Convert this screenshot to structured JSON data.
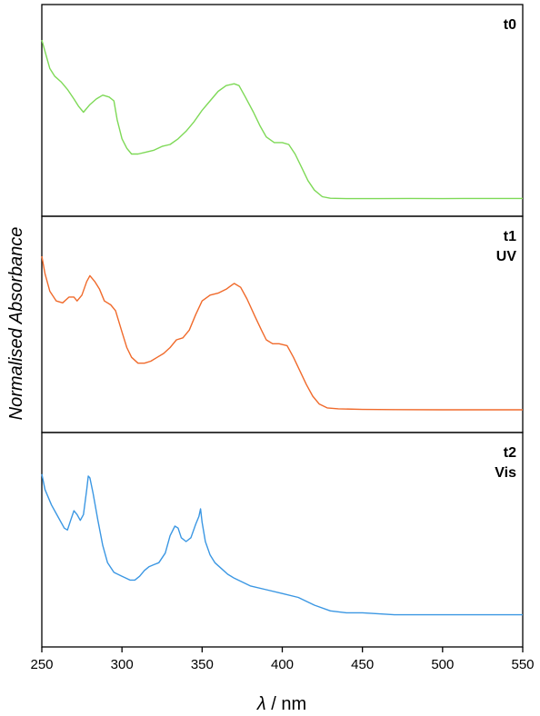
{
  "chart_data": {
    "type": "line",
    "xlabel": "λ / nm",
    "xlabel_var": "λ",
    "xlabel_unit": " / nm",
    "ylabel": "Normalised Absorbance",
    "xlim": [
      250,
      550
    ],
    "x_ticks": [
      250,
      300,
      350,
      400,
      450,
      500,
      550
    ],
    "y_ticks_shown": false,
    "grid": false,
    "panels": [
      {
        "labels": [
          "t0"
        ],
        "color": "#7ed957",
        "ylim": [
          0,
          1
        ],
        "points": [
          [
            250,
            0.88
          ],
          [
            252,
            0.82
          ],
          [
            255,
            0.73
          ],
          [
            258,
            0.69
          ],
          [
            262,
            0.66
          ],
          [
            266,
            0.62
          ],
          [
            270,
            0.57
          ],
          [
            273,
            0.53
          ],
          [
            276,
            0.5
          ],
          [
            280,
            0.54
          ],
          [
            284,
            0.57
          ],
          [
            288,
            0.59
          ],
          [
            292,
            0.58
          ],
          [
            295,
            0.56
          ],
          [
            297,
            0.46
          ],
          [
            300,
            0.36
          ],
          [
            303,
            0.31
          ],
          [
            306,
            0.28
          ],
          [
            310,
            0.28
          ],
          [
            315,
            0.29
          ],
          [
            320,
            0.3
          ],
          [
            325,
            0.32
          ],
          [
            330,
            0.33
          ],
          [
            335,
            0.36
          ],
          [
            340,
            0.4
          ],
          [
            345,
            0.45
          ],
          [
            350,
            0.51
          ],
          [
            355,
            0.56
          ],
          [
            360,
            0.61
          ],
          [
            365,
            0.64
          ],
          [
            370,
            0.65
          ],
          [
            373,
            0.64
          ],
          [
            377,
            0.58
          ],
          [
            382,
            0.5
          ],
          [
            386,
            0.43
          ],
          [
            390,
            0.37
          ],
          [
            395,
            0.34
          ],
          [
            400,
            0.34
          ],
          [
            404,
            0.33
          ],
          [
            408,
            0.28
          ],
          [
            412,
            0.21
          ],
          [
            416,
            0.14
          ],
          [
            420,
            0.09
          ],
          [
            425,
            0.055
          ],
          [
            430,
            0.047
          ],
          [
            440,
            0.045
          ],
          [
            460,
            0.045
          ],
          [
            480,
            0.046
          ],
          [
            500,
            0.045
          ],
          [
            520,
            0.046
          ],
          [
            550,
            0.046
          ]
        ]
      },
      {
        "labels": [
          "t1",
          "UV"
        ],
        "color": "#f06a2b",
        "ylim": [
          0,
          1
        ],
        "points": [
          [
            250,
            0.86
          ],
          [
            252,
            0.77
          ],
          [
            255,
            0.68
          ],
          [
            259,
            0.63
          ],
          [
            263,
            0.62
          ],
          [
            267,
            0.65
          ],
          [
            270,
            0.65
          ],
          [
            272,
            0.63
          ],
          [
            275,
            0.66
          ],
          [
            278,
            0.73
          ],
          [
            280,
            0.76
          ],
          [
            283,
            0.73
          ],
          [
            286,
            0.69
          ],
          [
            289,
            0.63
          ],
          [
            293,
            0.61
          ],
          [
            296,
            0.58
          ],
          [
            300,
            0.47
          ],
          [
            303,
            0.39
          ],
          [
            306,
            0.34
          ],
          [
            310,
            0.31
          ],
          [
            314,
            0.31
          ],
          [
            318,
            0.32
          ],
          [
            322,
            0.34
          ],
          [
            326,
            0.36
          ],
          [
            330,
            0.39
          ],
          [
            334,
            0.43
          ],
          [
            338,
            0.44
          ],
          [
            342,
            0.48
          ],
          [
            346,
            0.56
          ],
          [
            350,
            0.63
          ],
          [
            355,
            0.66
          ],
          [
            360,
            0.67
          ],
          [
            365,
            0.69
          ],
          [
            370,
            0.72
          ],
          [
            374,
            0.7
          ],
          [
            378,
            0.64
          ],
          [
            383,
            0.55
          ],
          [
            387,
            0.48
          ],
          [
            390,
            0.43
          ],
          [
            394,
            0.41
          ],
          [
            398,
            0.41
          ],
          [
            403,
            0.4
          ],
          [
            407,
            0.34
          ],
          [
            411,
            0.27
          ],
          [
            415,
            0.2
          ],
          [
            419,
            0.14
          ],
          [
            423,
            0.1
          ],
          [
            428,
            0.08
          ],
          [
            435,
            0.075
          ],
          [
            450,
            0.072
          ],
          [
            470,
            0.071
          ],
          [
            500,
            0.07
          ],
          [
            520,
            0.07
          ],
          [
            550,
            0.07
          ]
        ]
      },
      {
        "labels": [
          "t2",
          "Vis"
        ],
        "color": "#3b97e3",
        "ylim": [
          0,
          1
        ],
        "points": [
          [
            250,
            0.85
          ],
          [
            252,
            0.77
          ],
          [
            256,
            0.69
          ],
          [
            260,
            0.63
          ],
          [
            264,
            0.57
          ],
          [
            266,
            0.56
          ],
          [
            268,
            0.61
          ],
          [
            270,
            0.66
          ],
          [
            272,
            0.64
          ],
          [
            274,
            0.61
          ],
          [
            276,
            0.64
          ],
          [
            278,
            0.77
          ],
          [
            279,
            0.84
          ],
          [
            280,
            0.83
          ],
          [
            282,
            0.75
          ],
          [
            285,
            0.61
          ],
          [
            288,
            0.48
          ],
          [
            291,
            0.39
          ],
          [
            295,
            0.34
          ],
          [
            300,
            0.32
          ],
          [
            305,
            0.3
          ],
          [
            308,
            0.3
          ],
          [
            311,
            0.32
          ],
          [
            314,
            0.35
          ],
          [
            317,
            0.37
          ],
          [
            320,
            0.38
          ],
          [
            323,
            0.39
          ],
          [
            327,
            0.44
          ],
          [
            330,
            0.53
          ],
          [
            333,
            0.58
          ],
          [
            335,
            0.57
          ],
          [
            337,
            0.52
          ],
          [
            340,
            0.5
          ],
          [
            343,
            0.52
          ],
          [
            346,
            0.59
          ],
          [
            348,
            0.63
          ],
          [
            349,
            0.67
          ],
          [
            350,
            0.6
          ],
          [
            352,
            0.5
          ],
          [
            355,
            0.43
          ],
          [
            358,
            0.39
          ],
          [
            362,
            0.36
          ],
          [
            366,
            0.33
          ],
          [
            370,
            0.31
          ],
          [
            375,
            0.29
          ],
          [
            380,
            0.27
          ],
          [
            390,
            0.25
          ],
          [
            400,
            0.23
          ],
          [
            410,
            0.21
          ],
          [
            420,
            0.17
          ],
          [
            430,
            0.14
          ],
          [
            440,
            0.13
          ],
          [
            450,
            0.13
          ],
          [
            470,
            0.12
          ],
          [
            500,
            0.12
          ],
          [
            550,
            0.12
          ]
        ]
      }
    ]
  }
}
